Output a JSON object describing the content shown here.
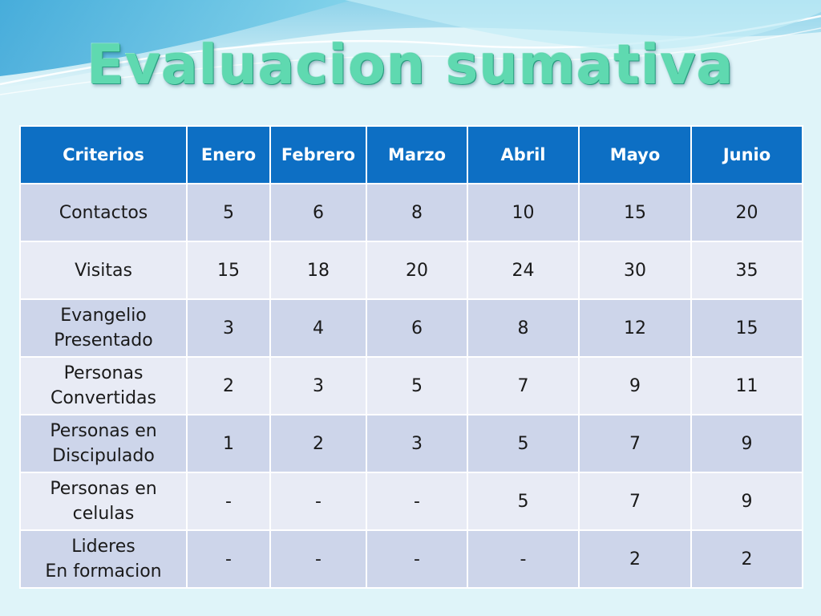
{
  "slide": {
    "title": "Evaluacion sumativa"
  },
  "colors": {
    "header_bg": "#0d6fc4",
    "row_odd_bg": "#cdd5ea",
    "row_even_bg": "#e8ebf5",
    "title_color": "#5fd9b0",
    "background": "#dff4f9"
  },
  "table": {
    "headers": [
      "Criterios",
      "Enero",
      "Febrero",
      "Marzo",
      "Abril",
      "Mayo",
      "Junio"
    ],
    "rows": [
      {
        "criterio": "Contactos",
        "values": [
          "5",
          "6",
          "8",
          "10",
          "15",
          "20"
        ]
      },
      {
        "criterio": "Visitas",
        "values": [
          "15",
          "18",
          "20",
          "24",
          "30",
          "35"
        ]
      },
      {
        "criterio": "Evangelio\nPresentado",
        "values": [
          "3",
          "4",
          "6",
          "8",
          "12",
          "15"
        ]
      },
      {
        "criterio": "Personas\nConvertidas",
        "values": [
          "2",
          "3",
          "5",
          "7",
          "9",
          "11"
        ]
      },
      {
        "criterio": "Personas en\nDiscipulado",
        "values": [
          "1",
          "2",
          "3",
          "5",
          "7",
          "9"
        ]
      },
      {
        "criterio": "Personas en\ncelulas",
        "values": [
          "-",
          "-",
          "-",
          "5",
          "7",
          "9"
        ]
      },
      {
        "criterio": "Lideres\nEn formacion",
        "values": [
          "-",
          "-",
          "-",
          "-",
          "2",
          "2"
        ]
      }
    ]
  }
}
